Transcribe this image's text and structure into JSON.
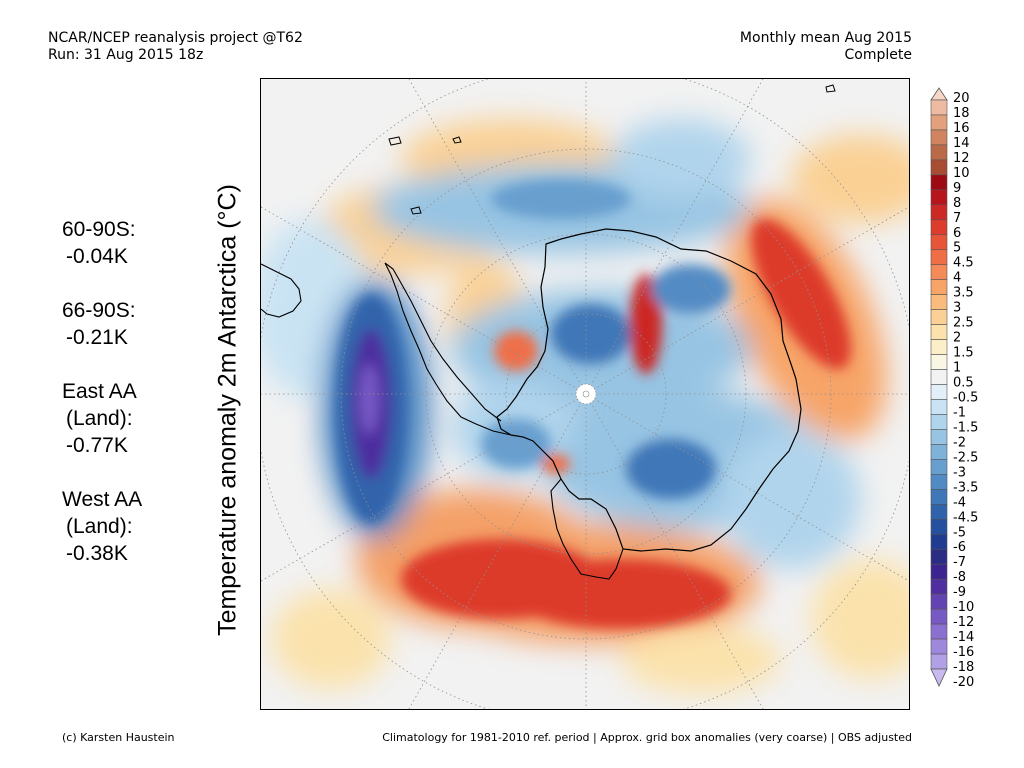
{
  "header": {
    "left_line1": "NCAR/NCEP reanalysis project @T62",
    "left_line2": "Run: 31 Aug 2015 18z",
    "right_line1": "Monthly mean Aug 2015",
    "right_line2": "Complete"
  },
  "axis_label": "Temperature anomaly 2m Antarctica (°C)",
  "stats": [
    {
      "label": "60-90S:",
      "value": "-0.04K"
    },
    {
      "label": "66-90S:",
      "value": "-0.21K"
    },
    {
      "label": "East AA",
      "sub": "(Land):",
      "value": "-0.77K"
    },
    {
      "label": "West AA",
      "sub": "(Land):",
      "value": "-0.38K"
    }
  ],
  "colorbar": {
    "labels": [
      "20",
      "18",
      "16",
      "14",
      "12",
      "10",
      "9",
      "8",
      "7",
      "6",
      "5",
      "4.5",
      "4",
      "3.5",
      "3",
      "2.5",
      "2",
      "1.5",
      "1",
      "0.5",
      "-0.5",
      "-1",
      "-1.5",
      "-2",
      "-2.5",
      "-3",
      "-3.5",
      "-4",
      "-4.5",
      "-5",
      "-6",
      "-7",
      "-8",
      "-9",
      "-10",
      "-12",
      "-14",
      "-16",
      "-18",
      "-20"
    ],
    "colors": [
      "#f7d8c8",
      "#eebba0",
      "#e2a07c",
      "#d08560",
      "#bb6a48",
      "#a84d34",
      "#9e0a14",
      "#b8141c",
      "#cc2824",
      "#dd3b2c",
      "#e85438",
      "#f06e46",
      "#f48a58",
      "#f7a468",
      "#f9bc7c",
      "#fad094",
      "#fbe2ac",
      "#fcefc8",
      "#faf6e4",
      "#f2f2f2",
      "#e2eff8",
      "#c9e3f3",
      "#b0d4ec",
      "#97c4e3",
      "#7eb2d9",
      "#679fcf",
      "#528bc4",
      "#3f77b8",
      "#3163ab",
      "#25509e",
      "#1f3c90",
      "#2b2c84",
      "#3c2490",
      "#4e2ea0",
      "#6243b2",
      "#7659c3",
      "#8a70d0",
      "#9e88db",
      "#b2a0e6",
      "#c8baef"
    ]
  },
  "footer": {
    "left": "(c) Karsten Haustein",
    "right": "Climatology for 1981-2010 ref. period | Approx. grid box anomalies (very coarse) | OBS adjusted"
  }
}
